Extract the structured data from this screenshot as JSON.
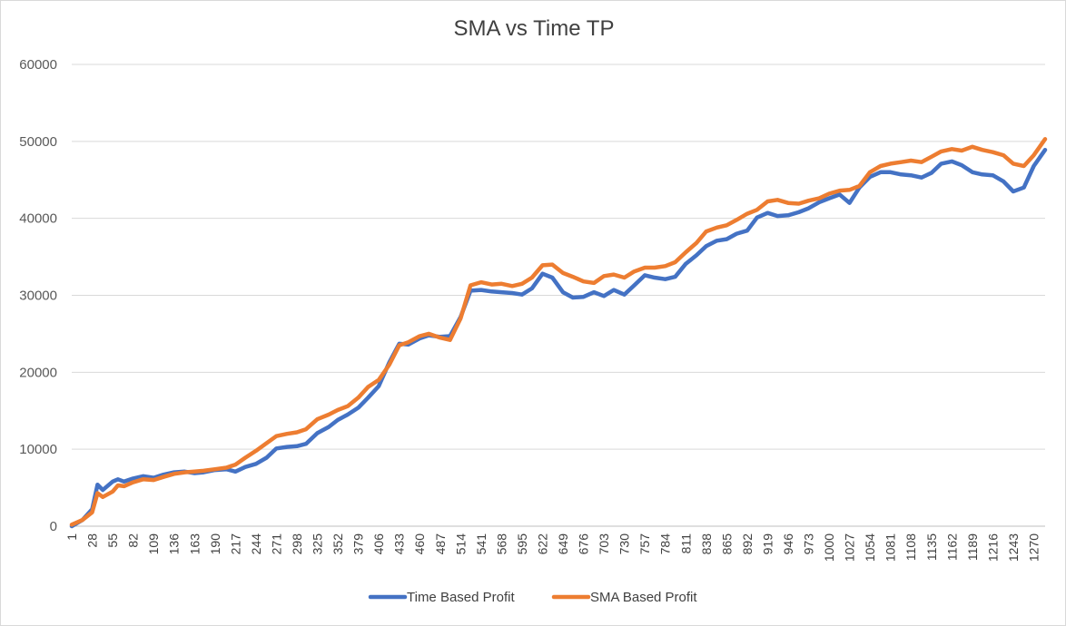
{
  "chart_data": {
    "type": "line",
    "title": "SMA vs Time TP",
    "xlabel": "",
    "ylabel": "",
    "ylim": [
      0,
      60000
    ],
    "yticks": [
      "0",
      "10000",
      "20000",
      "30000",
      "40000",
      "50000",
      "60000"
    ],
    "ytick_values": [
      0,
      10000,
      20000,
      30000,
      40000,
      50000,
      60000
    ],
    "x_range": [
      1,
      1285
    ],
    "x_tick_labels": [
      "1",
      "28",
      "55",
      "82",
      "109",
      "136",
      "163",
      "190",
      "217",
      "244",
      "271",
      "298",
      "325",
      "352",
      "379",
      "406",
      "433",
      "460",
      "487",
      "514",
      "541",
      "568",
      "595",
      "622",
      "649",
      "676",
      "703",
      "730",
      "757",
      "784",
      "811",
      "838",
      "865",
      "892",
      "919",
      "946",
      "973",
      "1000",
      "1027",
      "1054",
      "1081",
      "1108",
      "1135",
      "1162",
      "1189",
      "1216",
      "1243",
      "1270"
    ],
    "grid": true,
    "legend_position": "bottom",
    "series": [
      {
        "name": "Time Based Profit",
        "color": "#4472c4",
        "x": [
          1,
          15,
          28,
          35,
          42,
          55,
          62,
          70,
          82,
          95,
          109,
          122,
          136,
          150,
          163,
          175,
          190,
          205,
          217,
          230,
          244,
          258,
          271,
          285,
          298,
          310,
          325,
          340,
          352,
          365,
          379,
          392,
          406,
          420,
          433,
          445,
          460,
          472,
          487,
          500,
          514,
          527,
          541,
          555,
          568,
          582,
          595,
          608,
          622,
          635,
          649,
          662,
          676,
          690,
          703,
          716,
          730,
          743,
          757,
          770,
          784,
          797,
          811,
          825,
          838,
          852,
          865,
          878,
          892,
          905,
          919,
          932,
          946,
          960,
          973,
          987,
          1000,
          1014,
          1027,
          1040,
          1054,
          1068,
          1081,
          1095,
          1108,
          1122,
          1135,
          1148,
          1162,
          1175,
          1189,
          1202,
          1216,
          1230,
          1243,
          1257,
          1270,
          1285
        ],
        "values": [
          0,
          800,
          2200,
          5400,
          4700,
          5800,
          6100,
          5800,
          6200,
          6500,
          6300,
          6700,
          7000,
          7100,
          6900,
          7000,
          7300,
          7400,
          7100,
          7700,
          8100,
          8900,
          10100,
          10300,
          10400,
          10700,
          12100,
          12900,
          13800,
          14500,
          15400,
          16700,
          18200,
          21300,
          23700,
          23600,
          24400,
          24800,
          24600,
          24700,
          27200,
          30600,
          30700,
          30500,
          30400,
          30300,
          30100,
          30900,
          32800,
          32300,
          30400,
          29700,
          29800,
          30400,
          29900,
          30700,
          30100,
          31300,
          32600,
          32300,
          32100,
          32400,
          34100,
          35200,
          36400,
          37100,
          37300,
          38000,
          38400,
          40100,
          40700,
          40300,
          40400,
          40800,
          41300,
          42100,
          42600,
          43100,
          42000,
          44000,
          45400,
          46000,
          46000,
          45700,
          45600,
          45300,
          45900,
          47100,
          47400,
          46900,
          46000,
          45700,
          45600,
          44800,
          43500,
          44000,
          46800,
          48900
        ]
      },
      {
        "name": "SMA Based Profit",
        "color": "#ed7d31",
        "x": [
          1,
          15,
          28,
          35,
          42,
          55,
          62,
          70,
          82,
          95,
          109,
          122,
          136,
          150,
          163,
          175,
          190,
          205,
          217,
          230,
          244,
          258,
          271,
          285,
          298,
          310,
          325,
          340,
          352,
          365,
          379,
          392,
          406,
          420,
          433,
          445,
          460,
          472,
          487,
          500,
          514,
          527,
          541,
          555,
          568,
          582,
          595,
          608,
          622,
          635,
          649,
          662,
          676,
          690,
          703,
          716,
          730,
          743,
          757,
          770,
          784,
          797,
          811,
          825,
          838,
          852,
          865,
          878,
          892,
          905,
          919,
          932,
          946,
          960,
          973,
          987,
          1000,
          1014,
          1027,
          1040,
          1054,
          1068,
          1081,
          1095,
          1108,
          1122,
          1135,
          1148,
          1162,
          1175,
          1189,
          1202,
          1216,
          1230,
          1243,
          1257,
          1270,
          1285
        ],
        "values": [
          200,
          800,
          1800,
          4300,
          3800,
          4500,
          5300,
          5200,
          5700,
          6100,
          6000,
          6400,
          6800,
          7000,
          7100,
          7200,
          7400,
          7600,
          8000,
          8900,
          9800,
          10800,
          11700,
          12000,
          12200,
          12600,
          13900,
          14500,
          15100,
          15600,
          16700,
          18100,
          19000,
          21000,
          23500,
          23900,
          24700,
          25000,
          24500,
          24200,
          27000,
          31300,
          31700,
          31400,
          31500,
          31200,
          31500,
          32300,
          33900,
          34000,
          32900,
          32400,
          31800,
          31600,
          32500,
          32700,
          32300,
          33100,
          33600,
          33600,
          33800,
          34300,
          35600,
          36800,
          38300,
          38800,
          39100,
          39800,
          40600,
          41100,
          42200,
          42400,
          42000,
          41900,
          42300,
          42600,
          43200,
          43600,
          43700,
          44200,
          46000,
          46800,
          47100,
          47300,
          47500,
          47300,
          48000,
          48700,
          49000,
          48800,
          49300,
          48900,
          48600,
          48200,
          47100,
          46800,
          48200,
          50300
        ]
      }
    ]
  }
}
